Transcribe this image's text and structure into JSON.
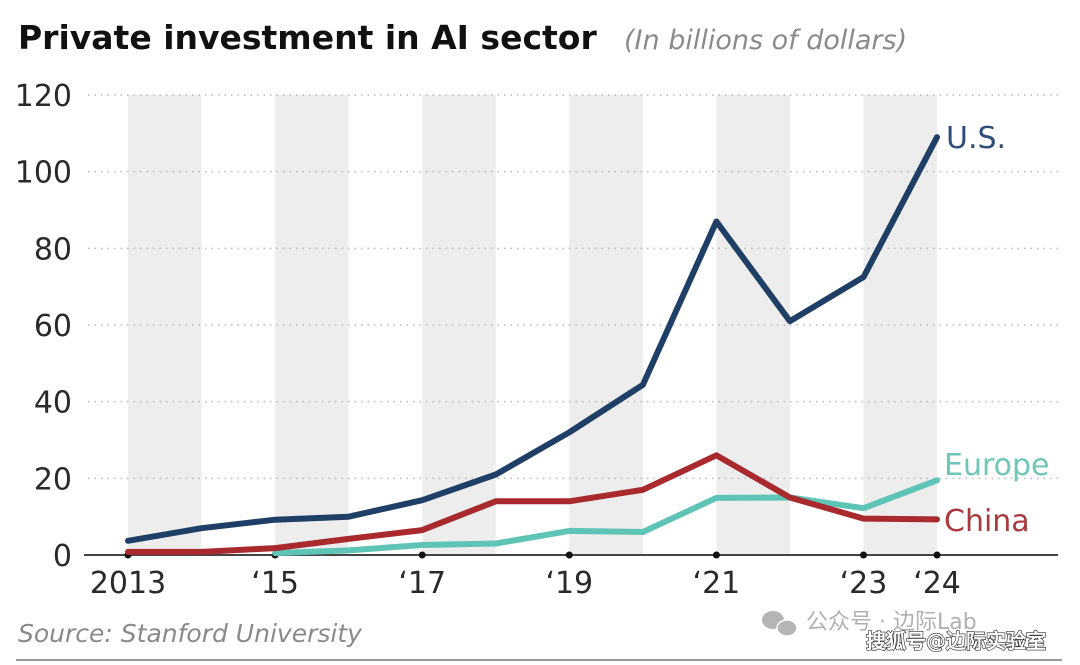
{
  "chart_data": {
    "type": "line",
    "title": "Private investment in AI sector",
    "subtitle": "(In billions of dollars)",
    "xlabel": "",
    "ylabel": "",
    "x": [
      2013,
      2014,
      2015,
      2016,
      2017,
      2018,
      2019,
      2020,
      2021,
      2022,
      2023,
      2024
    ],
    "x_tick_values": [
      2013,
      2015,
      2017,
      2019,
      2021,
      2023,
      2024
    ],
    "x_tick_labels": [
      "2013",
      "‘15",
      "‘17",
      "‘19",
      "‘21",
      "‘23",
      "‘24"
    ],
    "y_ticks": [
      0,
      20,
      40,
      60,
      80,
      100,
      120
    ],
    "y_tick_labels": [
      "0",
      "20",
      "40",
      "60",
      "80",
      "100",
      "120"
    ],
    "ylim": [
      0,
      120
    ],
    "grid": true,
    "alternating_year_bands": true,
    "series": [
      {
        "name": "U.S.",
        "color": "#1f3f66",
        "values": [
          3.7,
          7,
          9.2,
          10,
          14.3,
          21,
          32,
          44.4,
          87,
          61,
          72.5,
          109
        ]
      },
      {
        "name": "Europe",
        "color": "#5ec4b6",
        "values": [
          null,
          null,
          0.5,
          1.2,
          2.6,
          3,
          6.3,
          6,
          14.9,
          15,
          12.2,
          19.5
        ]
      },
      {
        "name": "China",
        "color": "#a82a2e",
        "values": [
          0.8,
          0.8,
          1.8,
          4.2,
          6.5,
          14,
          14,
          17,
          26,
          15,
          9.5,
          9.3
        ]
      }
    ],
    "legend_placement": "inline-right",
    "source": "Source: Stanford University"
  },
  "watermarks": {
    "wechat": "公众号 · 边际Lab",
    "sohu": "搜狐号@边际实验室"
  }
}
